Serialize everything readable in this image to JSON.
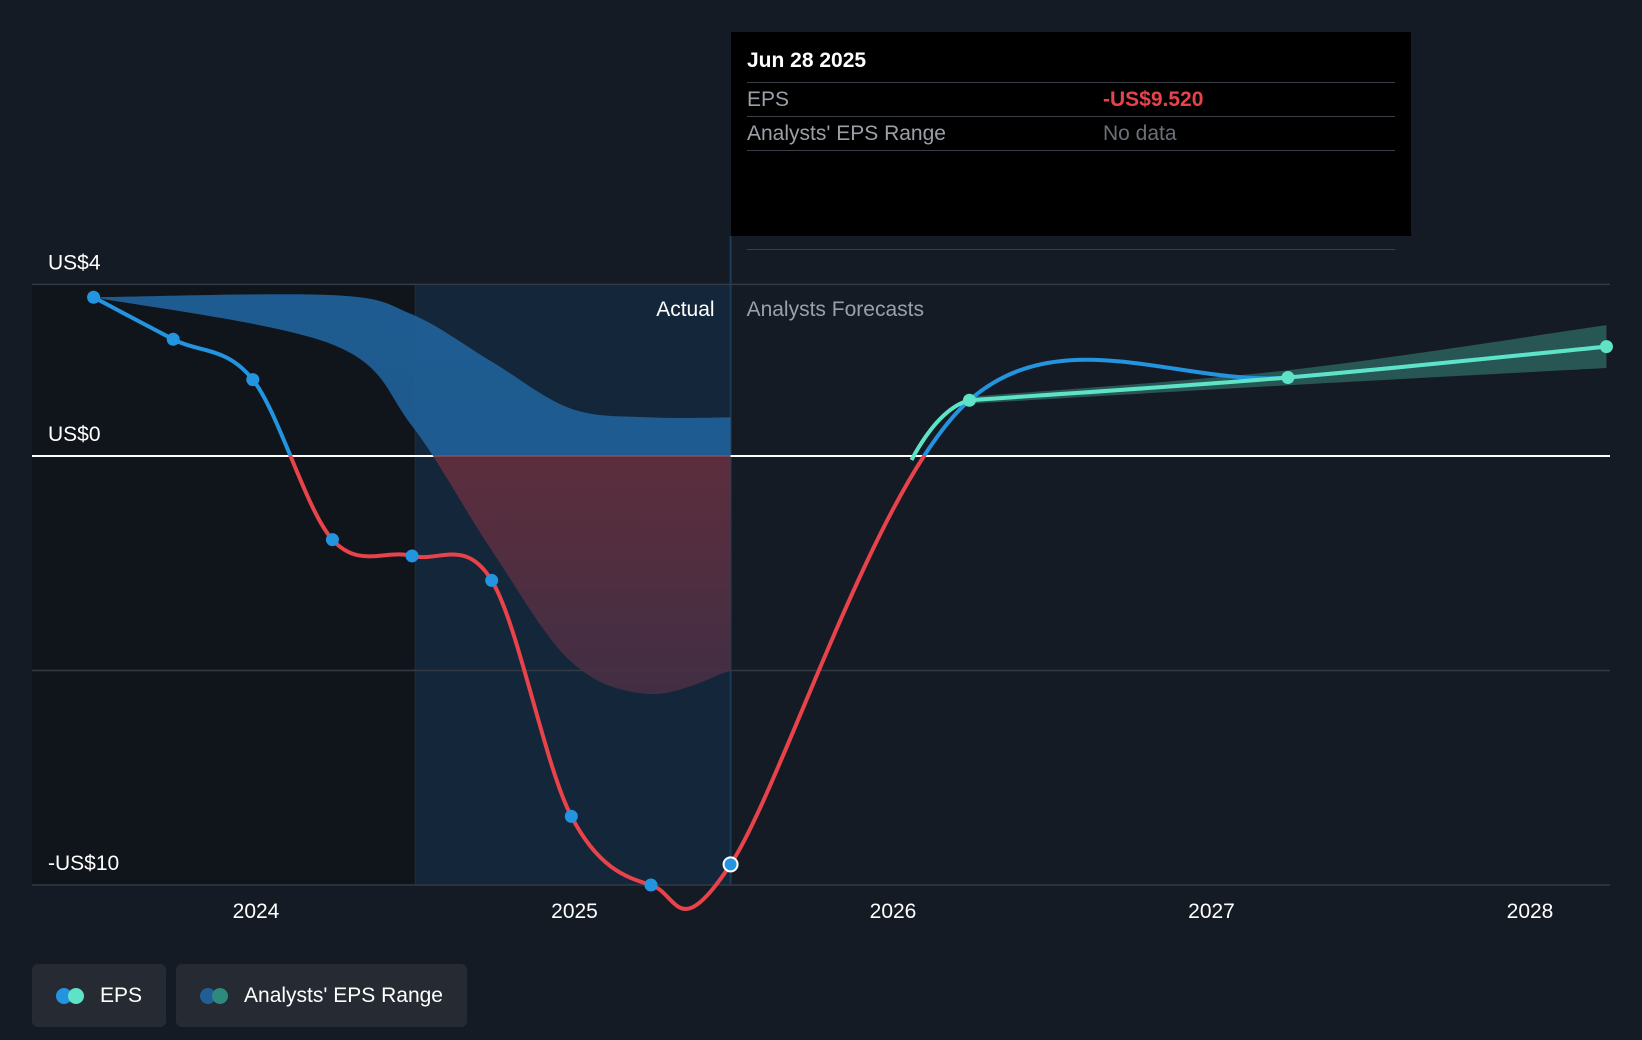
{
  "chart_data": {
    "type": "line",
    "title": "",
    "xlabel": "",
    "ylabel": "",
    "ylim": [
      -10,
      4
    ],
    "x_ticks": [
      2024,
      2025,
      2026,
      2027,
      2028
    ],
    "y_tick_labels": [
      {
        "value": 4,
        "label": "US$4"
      },
      {
        "value": 0,
        "label": "US$0"
      },
      {
        "value": -10,
        "label": "-US$10"
      }
    ],
    "gridlines_y": [
      4,
      0,
      -5,
      -10
    ],
    "forecast_start": 2025.49,
    "highlight_start": 2024.5,
    "series": [
      {
        "name": "EPS",
        "kind": "actual",
        "points": [
          {
            "x": 2023.49,
            "y": 3.7
          },
          {
            "x": 2023.74,
            "y": 2.72
          },
          {
            "x": 2023.99,
            "y": 1.78
          },
          {
            "x": 2024.24,
            "y": -1.95
          },
          {
            "x": 2024.49,
            "y": -2.33
          },
          {
            "x": 2024.74,
            "y": -2.9
          },
          {
            "x": 2024.99,
            "y": -8.4
          },
          {
            "x": 2025.24,
            "y": -10.0
          },
          {
            "x": 2025.49,
            "y": -9.52
          }
        ]
      },
      {
        "name": "EPS",
        "kind": "forecast",
        "points": [
          {
            "x": 2026.24,
            "y": 1.3
          },
          {
            "x": 2027.24,
            "y": 1.83
          },
          {
            "x": 2028.24,
            "y": 2.55
          }
        ]
      },
      {
        "name": "Analysts' EPS Range",
        "kind": "range-actual",
        "upper": [
          {
            "x": 2023.49,
            "y": 3.7
          },
          {
            "x": 2024.24,
            "y": 3.75
          },
          {
            "x": 2024.49,
            "y": 3.3
          },
          {
            "x": 2024.74,
            "y": 2.2
          },
          {
            "x": 2024.99,
            "y": 1.1
          },
          {
            "x": 2025.24,
            "y": 0.9
          },
          {
            "x": 2025.49,
            "y": 0.9
          }
        ],
        "lower": [
          {
            "x": 2023.49,
            "y": 3.7
          },
          {
            "x": 2024.24,
            "y": 2.6
          },
          {
            "x": 2024.49,
            "y": 0.7
          },
          {
            "x": 2024.74,
            "y": -2.2
          },
          {
            "x": 2024.99,
            "y": -4.8
          },
          {
            "x": 2025.24,
            "y": -5.55
          },
          {
            "x": 2025.49,
            "y": -5.0
          }
        ]
      },
      {
        "name": "Analysts' EPS Range",
        "kind": "range-forecast",
        "upper": [
          {
            "x": 2026.24,
            "y": 1.38
          },
          {
            "x": 2027.24,
            "y": 2.0
          },
          {
            "x": 2028.24,
            "y": 3.05
          }
        ],
        "lower": [
          {
            "x": 2026.24,
            "y": 1.22
          },
          {
            "x": 2027.24,
            "y": 1.65
          },
          {
            "x": 2028.24,
            "y": 2.05
          }
        ]
      }
    ],
    "annotations": {
      "actual_label": "Actual",
      "forecast_label": "Analysts Forecasts"
    },
    "colors": {
      "eps_positive": "#2394df",
      "eps_negative": "#e8434b",
      "forecast_line": "#5fe3c6",
      "range_positive": "#1f5f96",
      "range_negative": "#6e2e3a",
      "forecast_band": "#2f6b64",
      "gridline": "#323a45",
      "zero_line": "#ffffff"
    }
  },
  "tooltip": {
    "date": "Jun 28 2025",
    "rows": [
      {
        "label": "EPS",
        "value": "-US$9.520"
      },
      {
        "label": "Analysts' EPS Range",
        "value": "No data"
      }
    ]
  },
  "legend": [
    {
      "label": "EPS"
    },
    {
      "label": "Analysts' EPS Range"
    }
  ]
}
